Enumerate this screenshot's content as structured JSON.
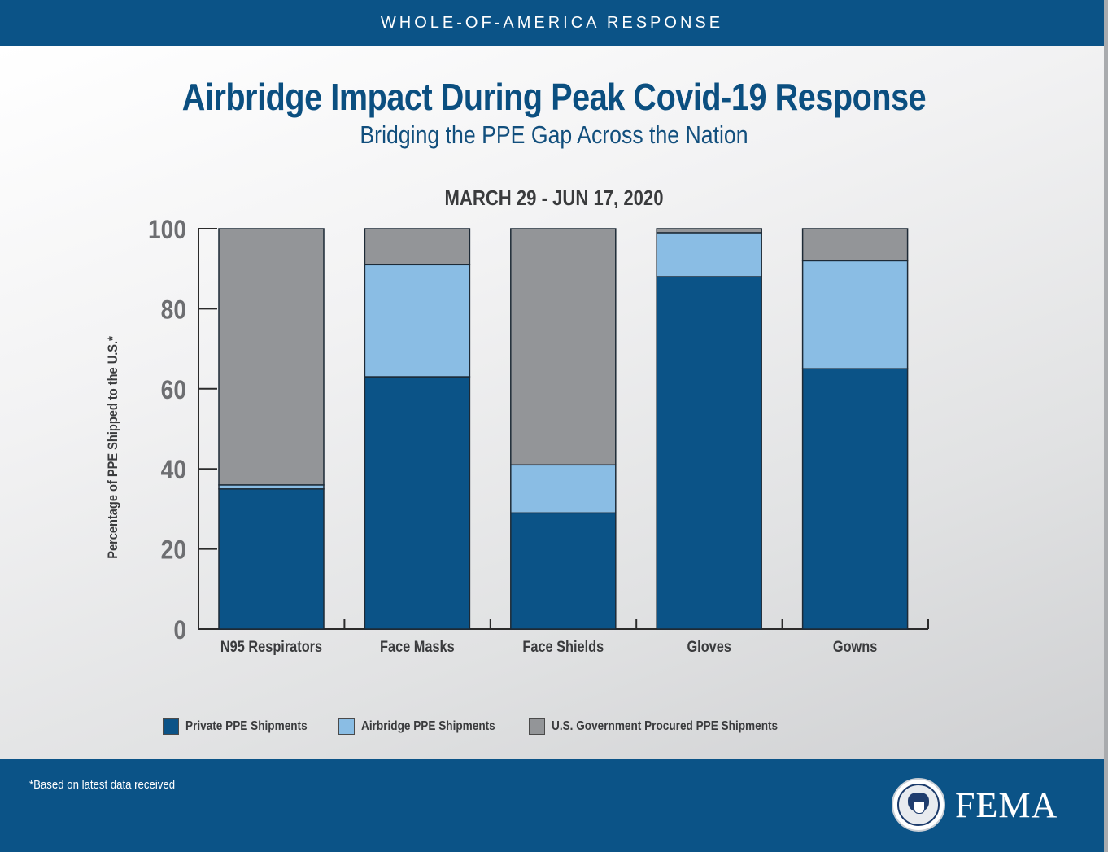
{
  "header": {
    "banner": "WHOLE-OF-AMERICA RESPONSE"
  },
  "title": "Airbridge Impact During Peak Covid-19 Response",
  "subtitle": "Bridging the PPE Gap Across the Nation",
  "date_range": "MARCH 29 - JUN 17, 2020",
  "footer": {
    "footnote": "*Based on latest data received",
    "logo_text": "FEMA",
    "seal": "dhs-seal-icon"
  },
  "colors": {
    "private": "#0b5387",
    "airbridge": "#8abde4",
    "government": "#939598",
    "banner": "#0b5387",
    "title": "#0b4f80"
  },
  "chart_data": {
    "type": "bar",
    "stacked": true,
    "title": "MARCH 29 - JUN 17, 2020",
    "xlabel": "",
    "ylabel": "Percentage of PPE Shipped to the U.S.*",
    "ylim": [
      0,
      100
    ],
    "yticks": [
      0,
      20,
      40,
      60,
      80,
      100
    ],
    "grid": false,
    "legend_position": "bottom",
    "categories": [
      "N95 Respirators",
      "Face Masks",
      "Face Shields",
      "Gloves",
      "Gowns"
    ],
    "series": [
      {
        "name": "Private PPE Shipments",
        "color": "#0b5387",
        "values": [
          35,
          63,
          29,
          88,
          65
        ]
      },
      {
        "name": "Airbridge PPE Shipments",
        "color": "#8abde4",
        "values": [
          1,
          28,
          12,
          11,
          27
        ]
      },
      {
        "name": "U.S. Government Procured PPE Shipments",
        "color": "#939598",
        "values": [
          64,
          9,
          59,
          1,
          8
        ]
      }
    ]
  }
}
